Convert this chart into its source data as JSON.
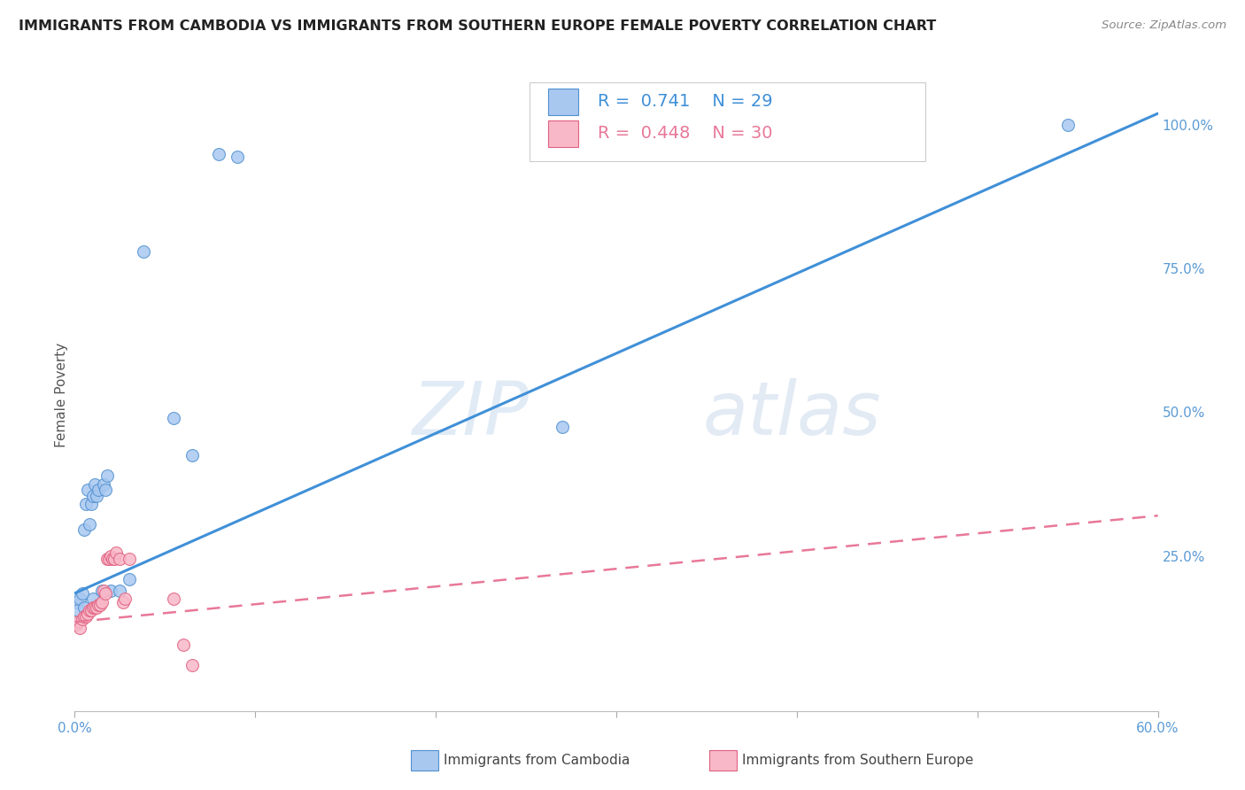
{
  "title": "IMMIGRANTS FROM CAMBODIA VS IMMIGRANTS FROM SOUTHERN EUROPE FEMALE POVERTY CORRELATION CHART",
  "source": "Source: ZipAtlas.com",
  "ylabel": "Female Poverty",
  "legend_label1": "Immigrants from Cambodia",
  "legend_label2": "Immigrants from Southern Europe",
  "R1": "0.741",
  "N1": "29",
  "R2": "0.448",
  "N2": "30",
  "xlim": [
    0.0,
    0.6
  ],
  "ylim": [
    -0.02,
    1.08
  ],
  "x_ticks": [
    0.0,
    0.1,
    0.2,
    0.3,
    0.4,
    0.5,
    0.6
  ],
  "x_tick_labels": [
    "0.0%",
    "",
    "",
    "",
    "",
    "",
    "60.0%"
  ],
  "y_ticks_right": [
    0.0,
    0.25,
    0.5,
    0.75,
    1.0
  ],
  "y_tick_labels_right": [
    "",
    "25.0%",
    "50.0%",
    "75.0%",
    "100.0%"
  ],
  "watermark_zip": "ZIP",
  "watermark_atlas": "atlas",
  "color_blue_fill": "#A8C8F0",
  "color_blue_edge": "#5090D0",
  "color_pink_fill": "#F8B8C8",
  "color_pink_edge": "#E06080",
  "color_blue_line": "#4090D8",
  "color_pink_line": "#E87898",
  "color_title": "#222222",
  "color_source": "#888888",
  "color_axis_right": "#5B9BD5",
  "color_grid": "#DDDDDD",
  "cambodia_x": [
    0.001,
    0.002,
    0.003,
    0.004,
    0.005,
    0.005,
    0.006,
    0.007,
    0.008,
    0.009,
    0.01,
    0.01,
    0.011,
    0.012,
    0.013,
    0.015,
    0.016,
    0.017,
    0.018,
    0.02,
    0.025,
    0.03,
    0.038,
    0.055,
    0.065,
    0.08,
    0.09,
    0.27,
    0.55
  ],
  "cambodia_y": [
    0.17,
    0.155,
    0.175,
    0.185,
    0.16,
    0.295,
    0.34,
    0.365,
    0.305,
    0.34,
    0.175,
    0.355,
    0.375,
    0.355,
    0.365,
    0.19,
    0.375,
    0.365,
    0.39,
    0.19,
    0.19,
    0.21,
    0.78,
    0.49,
    0.425,
    0.95,
    0.945,
    0.475,
    1.0
  ],
  "s_europe_x": [
    0.001,
    0.002,
    0.003,
    0.004,
    0.005,
    0.006,
    0.007,
    0.008,
    0.009,
    0.01,
    0.011,
    0.012,
    0.013,
    0.014,
    0.015,
    0.016,
    0.017,
    0.018,
    0.019,
    0.02,
    0.021,
    0.022,
    0.023,
    0.025,
    0.027,
    0.028,
    0.03,
    0.055,
    0.06,
    0.065
  ],
  "s_europe_y": [
    0.13,
    0.135,
    0.125,
    0.14,
    0.145,
    0.145,
    0.15,
    0.155,
    0.155,
    0.16,
    0.16,
    0.16,
    0.165,
    0.165,
    0.17,
    0.19,
    0.185,
    0.245,
    0.245,
    0.25,
    0.245,
    0.245,
    0.255,
    0.245,
    0.17,
    0.175,
    0.245,
    0.175,
    0.095,
    0.06
  ],
  "blue_line_x": [
    0.0,
    0.6
  ],
  "blue_line_y": [
    0.185,
    1.02
  ],
  "pink_line_x": [
    0.0,
    0.6
  ],
  "pink_line_y": [
    0.135,
    0.32
  ]
}
